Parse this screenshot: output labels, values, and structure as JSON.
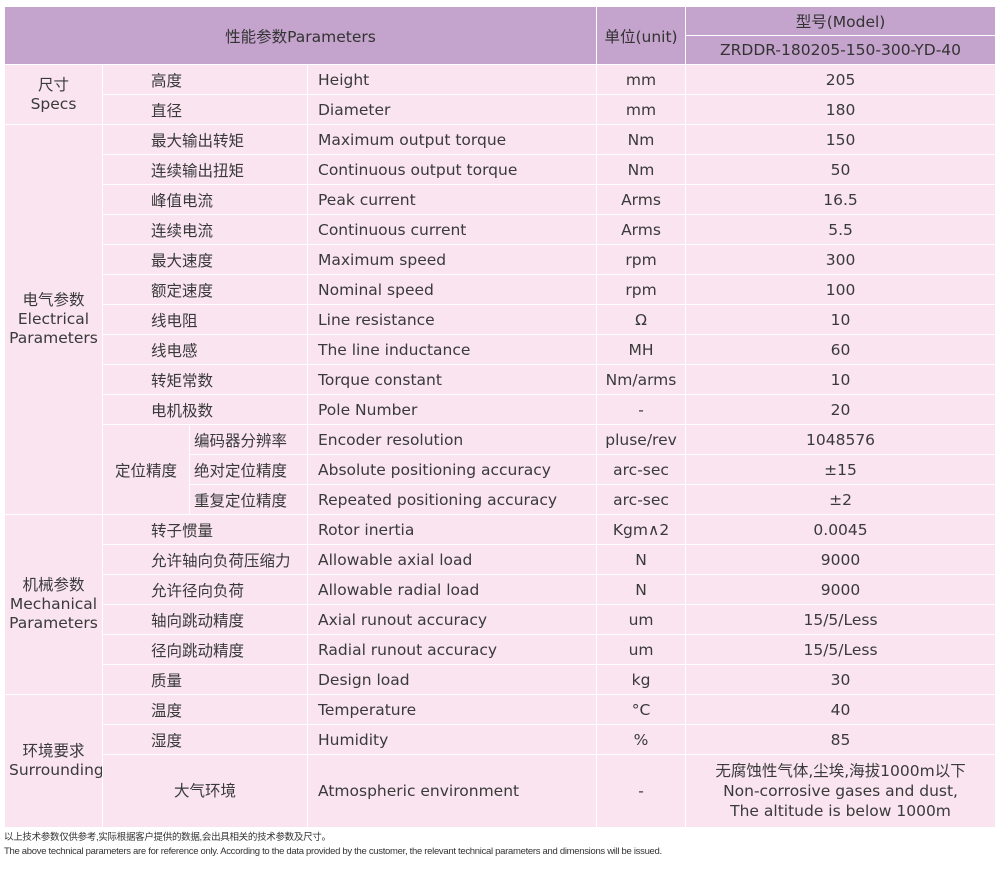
{
  "header": {
    "parameters": "性能参数Parameters",
    "unit": "单位(unit)",
    "model_label": "型号(Model)",
    "model": "ZRDDR-180205-150-300-YD-40"
  },
  "groups": [
    {
      "cn": "尺寸",
      "en": "Specs",
      "rows": [
        {
          "cn": "高度",
          "en": "Height",
          "unit": "mm",
          "value": "205"
        },
        {
          "cn": "直径",
          "en": "Diameter",
          "unit": "mm",
          "value": "180"
        }
      ]
    },
    {
      "cn": "电气参数",
      "en": "Electrical Parameters",
      "rows": [
        {
          "cn": "最大输出转矩",
          "en": "Maximum output torque",
          "unit": "Nm",
          "value": "150"
        },
        {
          "cn": "连续输出扭矩",
          "en": "Continuous output torque",
          "unit": "Nm",
          "value": "50"
        },
        {
          "cn": "峰值电流",
          "en": "Peak current",
          "unit": "Arms",
          "value": "16.5"
        },
        {
          "cn": "连续电流",
          "en": "Continuous current",
          "unit": "Arms",
          "value": "5.5"
        },
        {
          "cn": "最大速度",
          "en": "Maximum speed",
          "unit": "rpm",
          "value": "300"
        },
        {
          "cn": "额定速度",
          "en": "Nominal speed",
          "unit": "rpm",
          "value": "100"
        },
        {
          "cn": "线电阻",
          "en": "Line resistance",
          "unit": "Ω",
          "value": "10"
        },
        {
          "cn": "线电感",
          "en": "The line inductance",
          "unit": "MH",
          "value": "60"
        },
        {
          "cn": "转矩常数",
          "en": "Torque constant",
          "unit": "Nm/arms",
          "value": "10"
        },
        {
          "cn": "电机极数",
          "en": "Pole Number",
          "unit": "-",
          "value": "20"
        },
        {
          "sub": "定位精度",
          "cn": "编码器分辨率",
          "en": "Encoder resolution",
          "unit": "pluse/rev",
          "value": "1048576"
        },
        {
          "sub": "定位精度",
          "cn": "绝对定位精度",
          "en": "Absolute positioning accuracy",
          "unit": "arc-sec",
          "value": "±15"
        },
        {
          "sub": "定位精度",
          "cn": "重复定位精度",
          "en": "Repeated positioning accuracy",
          "unit": "arc-sec",
          "value": "±2"
        }
      ]
    },
    {
      "cn": "机械参数",
      "en": "Mechanical Parameters",
      "rows": [
        {
          "cn": "转子惯量",
          "en": "Rotor inertia",
          "unit": "Kgm∧2",
          "value": "0.0045"
        },
        {
          "cn": "允许轴向负荷压缩力",
          "en": "Allowable axial load",
          "unit": "N",
          "value": "9000"
        },
        {
          "cn": "允许径向负荷",
          "en": "Allowable radial load",
          "unit": "N",
          "value": "9000"
        },
        {
          "cn": "轴向跳动精度",
          "en": "Axial runout accuracy",
          "unit": "um",
          "value": "15/5/Less"
        },
        {
          "cn": "径向跳动精度",
          "en": "Radial runout accuracy",
          "unit": "um",
          "value": "15/5/Less"
        },
        {
          "cn": "质量",
          "en": "Design load",
          "unit": "kg",
          "value": "30"
        }
      ]
    },
    {
      "cn": "环境要求",
      "en": "Surroundings",
      "rows": [
        {
          "cn": "温度",
          "en": "Temperature",
          "unit": "°C",
          "value": "40"
        },
        {
          "cn": "湿度",
          "en": "Humidity",
          "unit": "%",
          "value": "85"
        },
        {
          "cn": "大气环境",
          "en": "Atmospheric environment",
          "unit": "-",
          "value": "无腐蚀性气体,尘埃,海拔1000m以下\nNon-corrosive gases and dust,\nThe altitude is below 1000m",
          "tall": true
        }
      ]
    }
  ],
  "notes": {
    "cn": "以上技术参数仅供参考,实际根据客户提供的数据,会出具相关的技术参数及尺寸。",
    "en": "The above technical parameters are for reference only. According to the data provided by the customer, the relevant technical parameters and dimensions will be issued."
  }
}
